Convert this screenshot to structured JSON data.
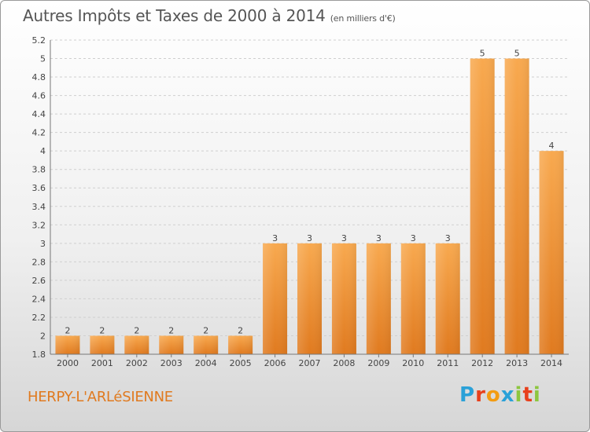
{
  "header": {
    "title": "Autres Impôts et Taxes de 2000 à 2014",
    "unit": "(en milliers d'€)"
  },
  "footer": {
    "commune": "HERPY-L'ARLéSIENNE",
    "logo": "Proxiti"
  },
  "colors": {
    "bar_light": "#f8a94f",
    "bar_dark": "#e07a1f",
    "grid": "#cfcfcf"
  },
  "chart_data": {
    "type": "bar",
    "title": "Autres Impôts et Taxes de 2000 à 2014",
    "subtitle": "(en milliers d'€)",
    "categories": [
      "2000",
      "2001",
      "2002",
      "2003",
      "2004",
      "2005",
      "2006",
      "2007",
      "2008",
      "2009",
      "2010",
      "2011",
      "2012",
      "2013",
      "2014"
    ],
    "values": [
      2,
      2,
      2,
      2,
      2,
      2,
      3,
      3,
      3,
      3,
      3,
      3,
      5,
      5,
      4
    ],
    "data_labels": [
      "2",
      "2",
      "2",
      "2",
      "2",
      "2",
      "3",
      "3",
      "3",
      "3",
      "3",
      "3",
      "5",
      "5",
      "4"
    ],
    "ylim": [
      1.8,
      5.2
    ],
    "y_ticks": [
      1.8,
      2,
      2.2,
      2.4,
      2.6,
      2.8,
      3,
      3.2,
      3.4,
      3.6,
      3.8,
      4,
      4.2,
      4.4,
      4.6,
      4.8,
      5,
      5.2
    ],
    "y_tick_labels": [
      "1.8",
      "2",
      "2.2",
      "2.4",
      "2.6",
      "2.8",
      "3",
      "3.2",
      "3.4",
      "3.6",
      "3.8",
      "4",
      "4.2",
      "4.4",
      "4.6",
      "4.8",
      "5",
      "5.2"
    ],
    "grid": true,
    "legend": "none"
  }
}
